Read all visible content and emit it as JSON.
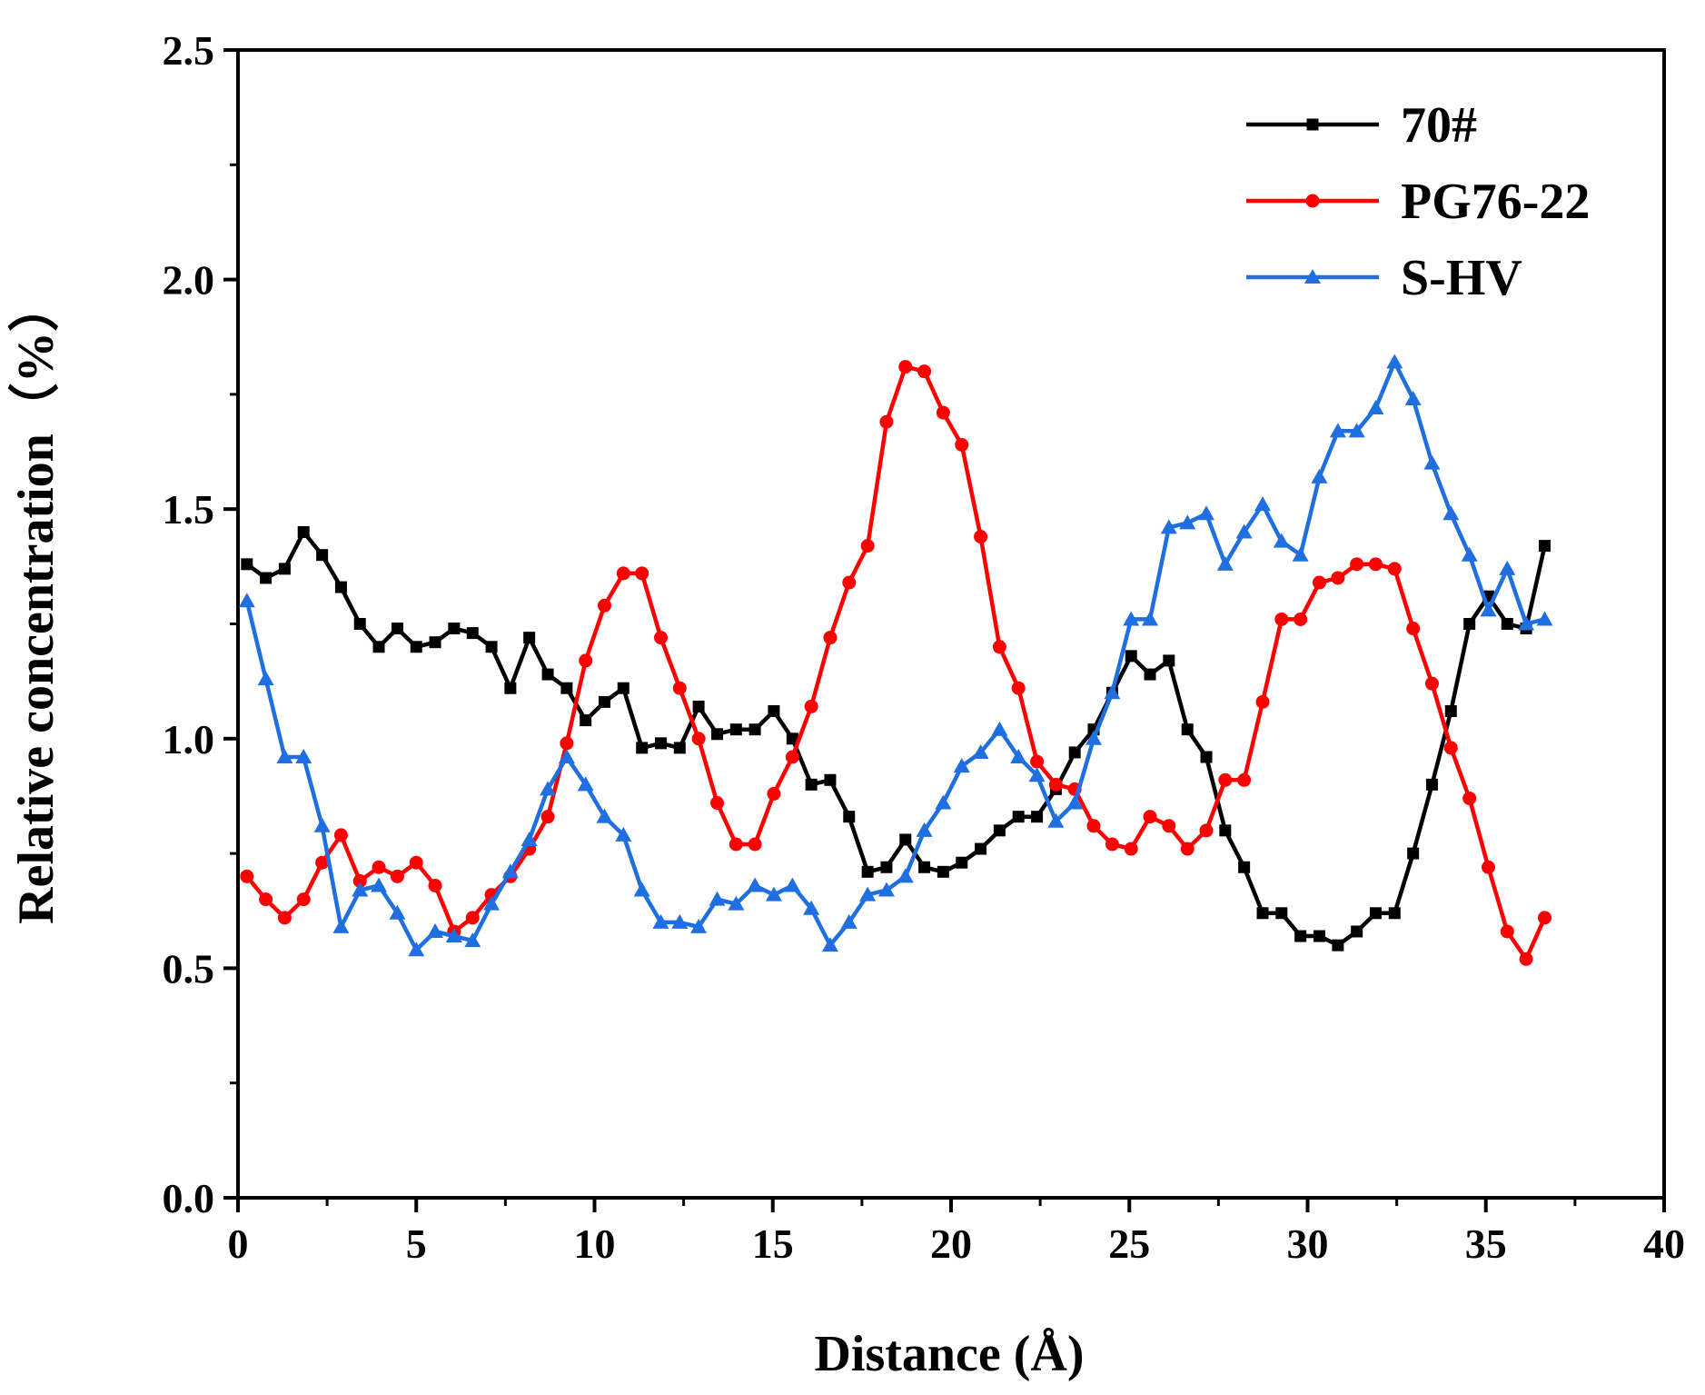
{
  "chart_data": {
    "type": "line",
    "title": "",
    "xlabel": "Distance (Å)",
    "ylabel": "Relative concentration（%）",
    "xlim": [
      0,
      40
    ],
    "ylim": [
      0.0,
      2.5
    ],
    "x_ticks": [
      "0",
      "5",
      "10",
      "15",
      "20",
      "25",
      "30",
      "35",
      "40"
    ],
    "y_ticks": [
      "0.0",
      "0.5",
      "1.0",
      "1.5",
      "2.0",
      "2.5"
    ],
    "legend_position": "top-right",
    "x": [
      0.25,
      0.78,
      1.31,
      1.84,
      2.36,
      2.89,
      3.42,
      3.95,
      4.47,
      5.0,
      5.53,
      6.06,
      6.58,
      7.11,
      7.64,
      8.17,
      8.69,
      9.22,
      9.75,
      10.28,
      10.81,
      11.33,
      11.86,
      12.39,
      12.92,
      13.44,
      13.97,
      14.5,
      15.03,
      15.55,
      16.08,
      16.61,
      17.14,
      17.66,
      18.19,
      18.72,
      19.25,
      19.78,
      20.3,
      20.83,
      21.36,
      21.89,
      22.41,
      22.94,
      23.47,
      24.0,
      24.52,
      25.05,
      25.58,
      26.11,
      26.63,
      27.16,
      27.69,
      28.22,
      28.74,
      29.27,
      29.8,
      30.33,
      30.85,
      31.38,
      31.91,
      32.44,
      32.96,
      33.49,
      34.02,
      34.54,
      35.07,
      35.6,
      36.13,
      36.65
    ],
    "series": [
      {
        "name": "70#",
        "color": "#000000",
        "marker": "square",
        "values": [
          1.38,
          1.35,
          1.37,
          1.45,
          1.4,
          1.33,
          1.25,
          1.2,
          1.24,
          1.2,
          1.21,
          1.24,
          1.23,
          1.2,
          1.11,
          1.22,
          1.14,
          1.11,
          1.04,
          1.08,
          1.11,
          0.98,
          0.99,
          0.98,
          1.07,
          1.01,
          1.02,
          1.02,
          1.06,
          1.0,
          0.9,
          0.91,
          0.83,
          0.71,
          0.72,
          0.78,
          0.72,
          0.71,
          0.73,
          0.76,
          0.8,
          0.83,
          0.83,
          0.89,
          0.97,
          1.02,
          1.1,
          1.18,
          1.14,
          1.17,
          1.02,
          0.96,
          0.8,
          0.72,
          0.62,
          0.62,
          0.57,
          0.57,
          0.55,
          0.58,
          0.62,
          0.62,
          0.75,
          0.9,
          1.06,
          1.25,
          1.31,
          1.25,
          1.24,
          1.42
        ]
      },
      {
        "name": "PG76-22",
        "color": "#ff0000",
        "marker": "circle",
        "values": [
          0.7,
          0.65,
          0.61,
          0.65,
          0.73,
          0.79,
          0.69,
          0.72,
          0.7,
          0.73,
          0.68,
          0.58,
          0.61,
          0.66,
          0.7,
          0.76,
          0.83,
          0.99,
          1.17,
          1.29,
          1.36,
          1.36,
          1.22,
          1.11,
          1.0,
          0.86,
          0.77,
          0.77,
          0.88,
          0.96,
          1.07,
          1.22,
          1.34,
          1.42,
          1.69,
          1.81,
          1.8,
          1.71,
          1.64,
          1.44,
          1.2,
          1.11,
          0.95,
          0.9,
          0.89,
          0.81,
          0.77,
          0.76,
          0.83,
          0.81,
          0.76,
          0.8,
          0.91,
          0.91,
          1.08,
          1.26,
          1.26,
          1.34,
          1.35,
          1.38,
          1.38,
          1.37,
          1.24,
          1.12,
          0.98,
          0.87,
          0.72,
          0.58,
          0.52,
          0.61
        ]
      },
      {
        "name": "S-HV",
        "color": "#1f6fe0",
        "marker": "triangle",
        "values": [
          1.3,
          1.13,
          0.96,
          0.96,
          0.81,
          0.59,
          0.67,
          0.68,
          0.62,
          0.54,
          0.58,
          0.57,
          0.56,
          0.64,
          0.71,
          0.78,
          0.89,
          0.96,
          0.9,
          0.83,
          0.79,
          0.67,
          0.6,
          0.6,
          0.59,
          0.65,
          0.64,
          0.68,
          0.66,
          0.68,
          0.63,
          0.55,
          0.6,
          0.66,
          0.67,
          0.7,
          0.8,
          0.86,
          0.94,
          0.97,
          1.02,
          0.96,
          0.92,
          0.82,
          0.86,
          1.0,
          1.1,
          1.26,
          1.26,
          1.46,
          1.47,
          1.49,
          1.38,
          1.45,
          1.51,
          1.43,
          1.4,
          1.57,
          1.67,
          1.67,
          1.72,
          1.82,
          1.74,
          1.6,
          1.49,
          1.4,
          1.28,
          1.37,
          1.25,
          1.26
        ]
      }
    ]
  }
}
